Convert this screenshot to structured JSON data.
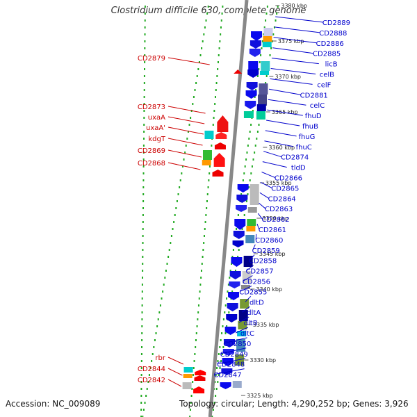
{
  "title": "Clostridium difficile 630, complete genome",
  "footer": {
    "accession": "Accession: NC_009089",
    "summary": "Topology: circular; Length: 4,290,252 bp; Genes: 3,926"
  },
  "kbp_ticks": [
    "3380 kbp",
    "3375 kbp",
    "3370 kbp",
    "3365 kbp",
    "3360 kbp",
    "3355 kbp",
    "3350 kbp",
    "3345 kbp",
    "3340 kbp",
    "3335 kbp",
    "3330 kbp",
    "3325 kbp"
  ],
  "left_genes": [
    "CD2879",
    "CD2873",
    "uxaA",
    "uxaA'",
    "kdgT",
    "CD2869",
    "CD2868",
    "rbr",
    "CD2844",
    "CD2842"
  ],
  "right_genes": [
    "CD2889",
    "CD2888",
    "CD2886",
    "CD2885",
    "licB",
    "celB",
    "celF",
    "CD2881",
    "celC",
    "fhuD",
    "fhuB",
    "fhuG",
    "fhuC",
    "CD2874",
    "tldD",
    "CD2866",
    "CD2865",
    "CD2864",
    "CD2863",
    "CD2862",
    "CD2861",
    "CD2860",
    "CD2859",
    "CD2858",
    "CD2857",
    "CD2856",
    "CD2855",
    "dltD",
    "dltA",
    "dltB",
    "dltC",
    "CD2850",
    "CD2849",
    "CD2848",
    "CD2847"
  ],
  "colors": {
    "left_label": "#cc0000",
    "right_label": "#0000cc",
    "backbone": "#888888",
    "dots": "#22aa22"
  }
}
